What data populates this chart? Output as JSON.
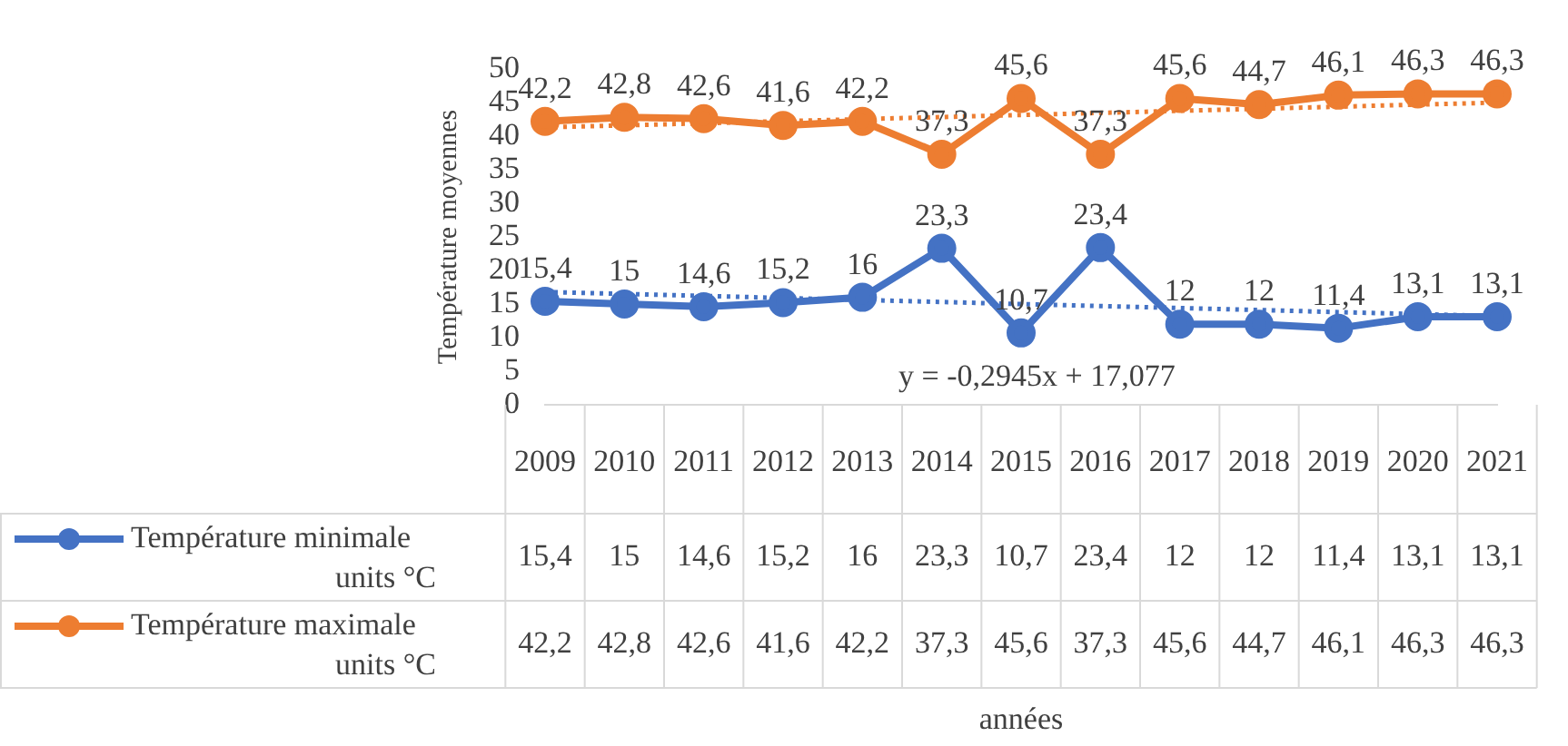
{
  "chart_data": {
    "type": "line",
    "ylabel": "Température moyennes",
    "categories": [
      "2009",
      "2010",
      "2011",
      "2012",
      "2013",
      "2014",
      "2015",
      "2016",
      "2017",
      "2018",
      "2019",
      "2020",
      "2021"
    ],
    "ylim": [
      0,
      50
    ],
    "yticks": [
      0,
      5,
      10,
      15,
      20,
      25,
      30,
      35,
      40,
      45,
      50
    ],
    "grid": false,
    "marker": "circle",
    "legend": "bottom",
    "annotations": [
      "y = -0,2945x + 17,077",
      "années"
    ],
    "series": [
      {
        "name": "Température minimale units °C",
        "color": "#4472c4",
        "values": [
          15.4,
          15,
          14.6,
          15.2,
          16,
          23.3,
          10.7,
          23.4,
          12,
          12,
          11.4,
          13.1,
          13.1
        ],
        "value_labels": [
          "15,4",
          "15",
          "14,6",
          "15,2",
          "16",
          "23,3",
          "10,7",
          "23,4",
          "12",
          "12",
          "11,4",
          "13,1",
          "13,1"
        ]
      },
      {
        "name": "Température maximale units °C",
        "color": "#ed7d31",
        "values": [
          42.2,
          42.8,
          42.6,
          41.6,
          42.2,
          37.3,
          45.6,
          37.3,
          45.6,
          44.7,
          46.1,
          46.3,
          46.3
        ],
        "value_labels": [
          "42,2",
          "42,8",
          "42,6",
          "41,6",
          "42,2",
          "37,3",
          "45,6",
          "37,3",
          "45,6",
          "44,7",
          "46,1",
          "46,3",
          "46,3"
        ]
      },
      {
        "color": "#4472c4",
        "line_style": "dotted",
        "marker": "none",
        "values": [
          16.8,
          null,
          null,
          null,
          null,
          null,
          null,
          null,
          null,
          null,
          null,
          null,
          13.2
        ]
      },
      {
        "color": "#ed7d31",
        "line_style": "dotted",
        "marker": "none",
        "values": [
          41.3,
          null,
          null,
          null,
          null,
          null,
          null,
          null,
          null,
          null,
          null,
          null,
          45.0
        ]
      }
    ]
  }
}
